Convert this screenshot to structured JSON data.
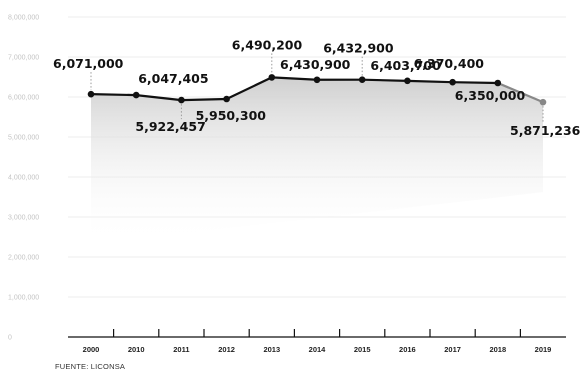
{
  "chart_data": {
    "type": "line",
    "categories": [
      "2000",
      "2010",
      "2011",
      "2012",
      "2013",
      "2014",
      "2015",
      "2016",
      "2017",
      "2018",
      "2019"
    ],
    "values": [
      6071000,
      6047405,
      5922457,
      5950300,
      6490200,
      6430900,
      6432900,
      6403700,
      6370400,
      6350000,
      5871236
    ],
    "data_labels": [
      "6,071,000",
      "6,047,405",
      "5,922,457",
      "5,950,300",
      "6,490,200",
      "6,430,900",
      "6,432,900",
      "6,403,700",
      "6,370,400",
      "6,350,000",
      "5,871,236"
    ],
    "ylim": [
      0,
      8000000
    ],
    "yticks": [
      0,
      1000000,
      2000000,
      3000000,
      4000000,
      5000000,
      6000000,
      7000000,
      8000000
    ],
    "ytick_labels": [
      "0",
      "1,000,000",
      "2,000,000",
      "3,000,000",
      "4,000,000",
      "5,000,000",
      "6,000,000",
      "7,000,000",
      "8,000,000"
    ],
    "grid": true,
    "line_color": "#111111",
    "last_segment_color": "#888888",
    "fill_gradient": [
      "#cfcfcf",
      "#ffffff"
    ]
  },
  "source": "FUENTE: LICONSA"
}
